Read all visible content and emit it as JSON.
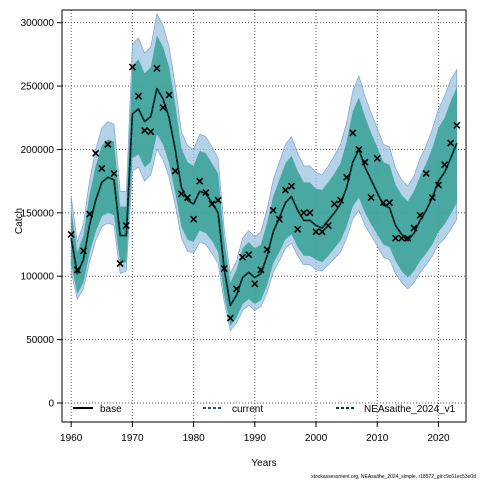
{
  "chart_data": {
    "type": "line",
    "xlabel": "Years",
    "ylabel": "Catch",
    "xlim": [
      1958.5,
      2024.5
    ],
    "ylim": [
      -15000,
      310000
    ],
    "x_ticks": [
      1960,
      1970,
      1980,
      1990,
      2000,
      2010,
      2020
    ],
    "y_ticks": [
      0,
      50000,
      100000,
      150000,
      200000,
      250000,
      300000
    ],
    "grid": true,
    "legend_position": "bottom",
    "credit": "stockassessment.org, NEAsaithe_2024_simple, r18572_git:c9c61ec53e0d",
    "colors": {
      "outer_band": "#9ec3e2",
      "inner_band": "#2e9e8e",
      "base": "#000000",
      "current": "#1f4e9a",
      "v1": "#003e34",
      "observed": "#000000",
      "grid": "#555555"
    },
    "series": [
      {
        "name": "base",
        "style": "solid",
        "x": [
          1960,
          1961,
          1962,
          1963,
          1964,
          1965,
          1966,
          1967,
          1968,
          1969,
          1970,
          1971,
          1972,
          1973,
          1974,
          1975,
          1976,
          1977,
          1978,
          1979,
          1980,
          1981,
          1982,
          1983,
          1984,
          1985,
          1986,
          1987,
          1988,
          1989,
          1990,
          1991,
          1992,
          1993,
          1994,
          1995,
          1996,
          1997,
          1998,
          1999,
          2000,
          2001,
          2002,
          2003,
          2004,
          2005,
          2006,
          2007,
          2008,
          2009,
          2010,
          2011,
          2012,
          2013,
          2014,
          2015,
          2016,
          2017,
          2018,
          2019,
          2020,
          2021,
          2022,
          2023
        ],
        "y": [
          130000,
          102000,
          113000,
          140000,
          160000,
          174000,
          178000,
          176000,
          132000,
          132000,
          228000,
          232000,
          222000,
          226000,
          248000,
          240000,
          225000,
          200000,
          170000,
          160000,
          157000,
          167000,
          165000,
          158000,
          150000,
          106000,
          77000,
          85000,
          99000,
          103000,
          99000,
          102000,
          116000,
          135000,
          146000,
          158000,
          163000,
          152000,
          144000,
          144000,
          140000,
          138000,
          144000,
          150000,
          157000,
          170000,
          190000,
          200000,
          186000,
          176000,
          166000,
          156000,
          154000,
          140000,
          133000,
          128000,
          134000,
          144000,
          152000,
          162000,
          175000,
          182000,
          193000,
          205000
        ]
      },
      {
        "name": "current",
        "style": "dashed",
        "x": [
          1960,
          1961,
          1962,
          1963,
          1964,
          1965,
          1966,
          1967,
          1968,
          1969,
          1970,
          1971,
          1972,
          1973,
          1974,
          1975,
          1976,
          1977,
          1978,
          1979,
          1980,
          1981,
          1982,
          1983,
          1984,
          1985,
          1986,
          1987,
          1988,
          1989,
          1990,
          1991,
          1992,
          1993,
          1994,
          1995,
          1996,
          1997,
          1998,
          1999,
          2000,
          2001,
          2002,
          2003,
          2004,
          2005,
          2006,
          2007,
          2008,
          2009,
          2010,
          2011,
          2012,
          2013,
          2014,
          2015,
          2016,
          2017,
          2018,
          2019,
          2020,
          2021,
          2022,
          2023
        ],
        "y": [
          130000,
          102000,
          113000,
          140000,
          160000,
          174000,
          178000,
          176000,
          132000,
          132000,
          228000,
          232000,
          222000,
          226000,
          248000,
          240000,
          225000,
          200000,
          170000,
          160000,
          157000,
          167000,
          165000,
          158000,
          150000,
          106000,
          77000,
          85000,
          99000,
          103000,
          99000,
          102000,
          116000,
          135000,
          146000,
          158000,
          163000,
          152000,
          144000,
          144000,
          140000,
          138000,
          144000,
          150000,
          157000,
          170000,
          190000,
          200000,
          186000,
          176000,
          166000,
          156000,
          154000,
          140000,
          133000,
          128000,
          134000,
          144000,
          152000,
          162000,
          175000,
          182000,
          193000,
          205000
        ]
      },
      {
        "name": "NEAsaithe_2024_v1",
        "style": "dashed",
        "x": [
          1960,
          1961,
          1962,
          1963,
          1964,
          1965,
          1966,
          1967,
          1968,
          1969,
          1970,
          1971,
          1972,
          1973,
          1974,
          1975,
          1976,
          1977,
          1978,
          1979,
          1980,
          1981,
          1982,
          1983,
          1984,
          1985,
          1986,
          1987,
          1988,
          1989,
          1990,
          1991,
          1992,
          1993,
          1994,
          1995,
          1996,
          1997,
          1998,
          1999,
          2000,
          2001,
          2002,
          2003,
          2004,
          2005,
          2006,
          2007,
          2008,
          2009,
          2010,
          2011,
          2012,
          2013,
          2014,
          2015,
          2016,
          2017,
          2018,
          2019,
          2020,
          2021,
          2022,
          2023
        ],
        "y": [
          130000,
          102000,
          113000,
          140000,
          160000,
          174000,
          178000,
          176000,
          132000,
          132000,
          228000,
          232000,
          222000,
          226000,
          248000,
          240000,
          225000,
          200000,
          170000,
          160000,
          157000,
          167000,
          165000,
          158000,
          150000,
          106000,
          77000,
          85000,
          99000,
          103000,
          99000,
          102000,
          116000,
          135000,
          146000,
          158000,
          163000,
          152000,
          144000,
          144000,
          140000,
          138000,
          144000,
          150000,
          157000,
          170000,
          190000,
          200000,
          186000,
          176000,
          166000,
          156000,
          154000,
          140000,
          133000,
          128000,
          134000,
          144000,
          152000,
          162000,
          175000,
          182000,
          193000,
          205000
        ]
      }
    ],
    "bands": {
      "x": [
        1960,
        1961,
        1962,
        1963,
        1964,
        1965,
        1966,
        1967,
        1968,
        1969,
        1970,
        1971,
        1972,
        1973,
        1974,
        1975,
        1976,
        1977,
        1978,
        1979,
        1980,
        1981,
        1982,
        1983,
        1984,
        1985,
        1986,
        1987,
        1988,
        1989,
        1990,
        1991,
        1992,
        1993,
        1994,
        1995,
        1996,
        1997,
        1998,
        1999,
        2000,
        2001,
        2002,
        2003,
        2004,
        2005,
        2006,
        2007,
        2008,
        2009,
        2010,
        2011,
        2012,
        2013,
        2014,
        2015,
        2016,
        2017,
        2018,
        2019,
        2020,
        2021,
        2022,
        2023
      ],
      "outer_lower": [
        103000,
        82000,
        90000,
        111000,
        128000,
        139000,
        142000,
        140000,
        102000,
        104000,
        183000,
        186000,
        175000,
        180000,
        200000,
        192000,
        178000,
        156000,
        130000,
        120000,
        118000,
        127000,
        125000,
        118000,
        110000,
        80000,
        57000,
        63000,
        73000,
        77000,
        73000,
        76000,
        87000,
        103000,
        112000,
        122000,
        126000,
        116000,
        109000,
        109000,
        105000,
        104000,
        109000,
        114000,
        119000,
        130000,
        145000,
        152000,
        140000,
        132000,
        124000,
        115000,
        113000,
        102000,
        95000,
        90000,
        95000,
        103000,
        109000,
        116000,
        125000,
        130000,
        137000,
        145000
      ],
      "outer_upper": [
        163000,
        127000,
        141000,
        175000,
        200000,
        217000,
        222000,
        220000,
        167000,
        167000,
        283000,
        288000,
        276000,
        281000,
        307000,
        298000,
        281000,
        251000,
        214000,
        203000,
        200000,
        212000,
        210000,
        202000,
        193000,
        137000,
        102000,
        112000,
        130000,
        136000,
        131000,
        135000,
        153000,
        176000,
        190000,
        204000,
        210000,
        197000,
        187000,
        187000,
        182000,
        180000,
        187000,
        195000,
        204000,
        221000,
        246000,
        258000,
        242000,
        229000,
        217000,
        204000,
        202000,
        185000,
        176000,
        171000,
        179000,
        193000,
        203000,
        216000,
        232000,
        242000,
        255000,
        263000
      ],
      "inner_lower": [
        110000,
        86000,
        95000,
        118000,
        135000,
        147000,
        150000,
        148000,
        110000,
        111000,
        193000,
        196000,
        186000,
        190000,
        212000,
        204000,
        189000,
        166000,
        139000,
        129000,
        127000,
        136000,
        134000,
        128000,
        119000,
        85000,
        61000,
        67000,
        78000,
        82000,
        78000,
        81000,
        93000,
        110000,
        119000,
        129000,
        133000,
        123000,
        116000,
        116000,
        113000,
        111000,
        116000,
        122000,
        128000,
        139000,
        155000,
        162000,
        150000,
        141000,
        133000,
        125000,
        123000,
        112000,
        104000,
        99000,
        104000,
        112000,
        118000,
        125000,
        135000,
        141000,
        149000,
        158000
      ],
      "inner_upper": [
        153000,
        119000,
        132000,
        164000,
        187000,
        203000,
        208000,
        206000,
        155000,
        155000,
        266000,
        271000,
        260000,
        265000,
        290000,
        281000,
        265000,
        236000,
        201000,
        190000,
        187000,
        199000,
        197000,
        189000,
        181000,
        129000,
        95000,
        105000,
        122000,
        127000,
        122000,
        125000,
        142000,
        163000,
        176000,
        189000,
        195000,
        183000,
        174000,
        174000,
        169000,
        168000,
        174000,
        181000,
        189000,
        206000,
        230000,
        241000,
        226000,
        213000,
        202000,
        190000,
        188000,
        172000,
        164000,
        159000,
        167000,
        179000,
        189000,
        201000,
        217000,
        225000,
        238000,
        249000
      ]
    },
    "observed": {
      "x": [
        1960,
        1961,
        1962,
        1963,
        1964,
        1965,
        1966,
        1967,
        1968,
        1969,
        1970,
        1971,
        1972,
        1973,
        1974,
        1975,
        1976,
        1977,
        1978,
        1979,
        1980,
        1981,
        1982,
        1983,
        1984,
        1985,
        1986,
        1987,
        1988,
        1989,
        1990,
        1991,
        1992,
        1993,
        1994,
        1995,
        1996,
        1997,
        1998,
        1999,
        2000,
        2001,
        2002,
        2003,
        2004,
        2005,
        2006,
        2007,
        2008,
        2009,
        2010,
        2011,
        2012,
        2013,
        2014,
        2015,
        2016,
        2017,
        2018,
        2019,
        2020,
        2021,
        2022,
        2023
      ],
      "y": [
        133000,
        105000,
        120000,
        149000,
        197000,
        185000,
        204000,
        181000,
        110000,
        140000,
        265000,
        242000,
        215000,
        214000,
        264000,
        233000,
        243000,
        183000,
        165000,
        162000,
        145000,
        175000,
        166000,
        157000,
        160000,
        106000,
        67000,
        90000,
        115000,
        117000,
        94000,
        105000,
        121000,
        152000,
        145000,
        168000,
        171000,
        137000,
        150000,
        150000,
        135000,
        135000,
        140000,
        157000,
        160000,
        178000,
        213000,
        200000,
        190000,
        162000,
        193000,
        158000,
        158000,
        130000,
        130000,
        130000,
        138000,
        148000,
        181000,
        162000,
        172000,
        188000,
        205000,
        219000
      ]
    }
  }
}
